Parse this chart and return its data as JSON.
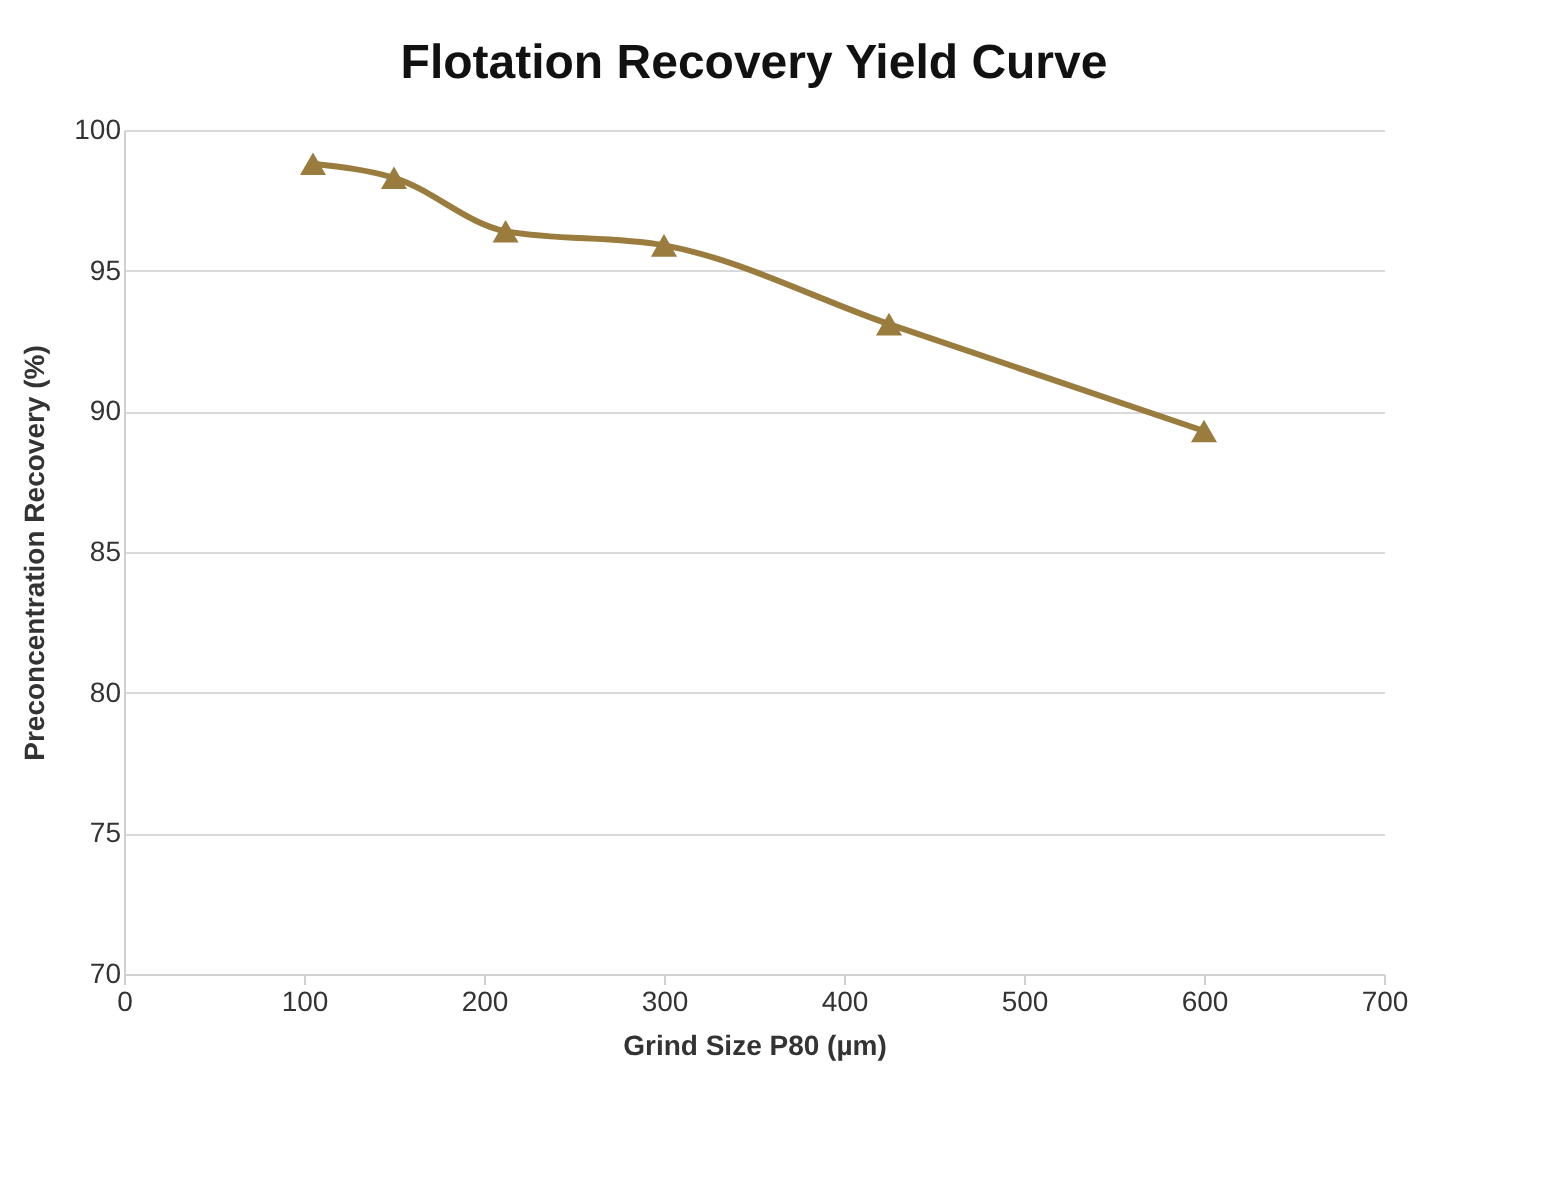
{
  "chart_data": {
    "type": "line",
    "title": "Flotation Recovery Yield Curve",
    "xlabel": "Grind Size P80 (µm)",
    "ylabel": "Preconcentration Recovery (%)",
    "x": [
      105,
      150,
      212,
      300,
      425,
      600
    ],
    "series": [
      {
        "color": "#9a7d3e",
        "values": [
          98.8,
          98.3,
          96.4,
          95.9,
          93.1,
          89.3
        ]
      }
    ],
    "xlim": [
      0,
      700
    ],
    "xticks": [
      0,
      100,
      200,
      300,
      400,
      500,
      600,
      700
    ],
    "ylim": [
      70,
      100
    ],
    "yticks": [
      70,
      75,
      80,
      85,
      90,
      95,
      100
    ],
    "grid": "y",
    "marker": "triangle",
    "line_style": "solid"
  }
}
